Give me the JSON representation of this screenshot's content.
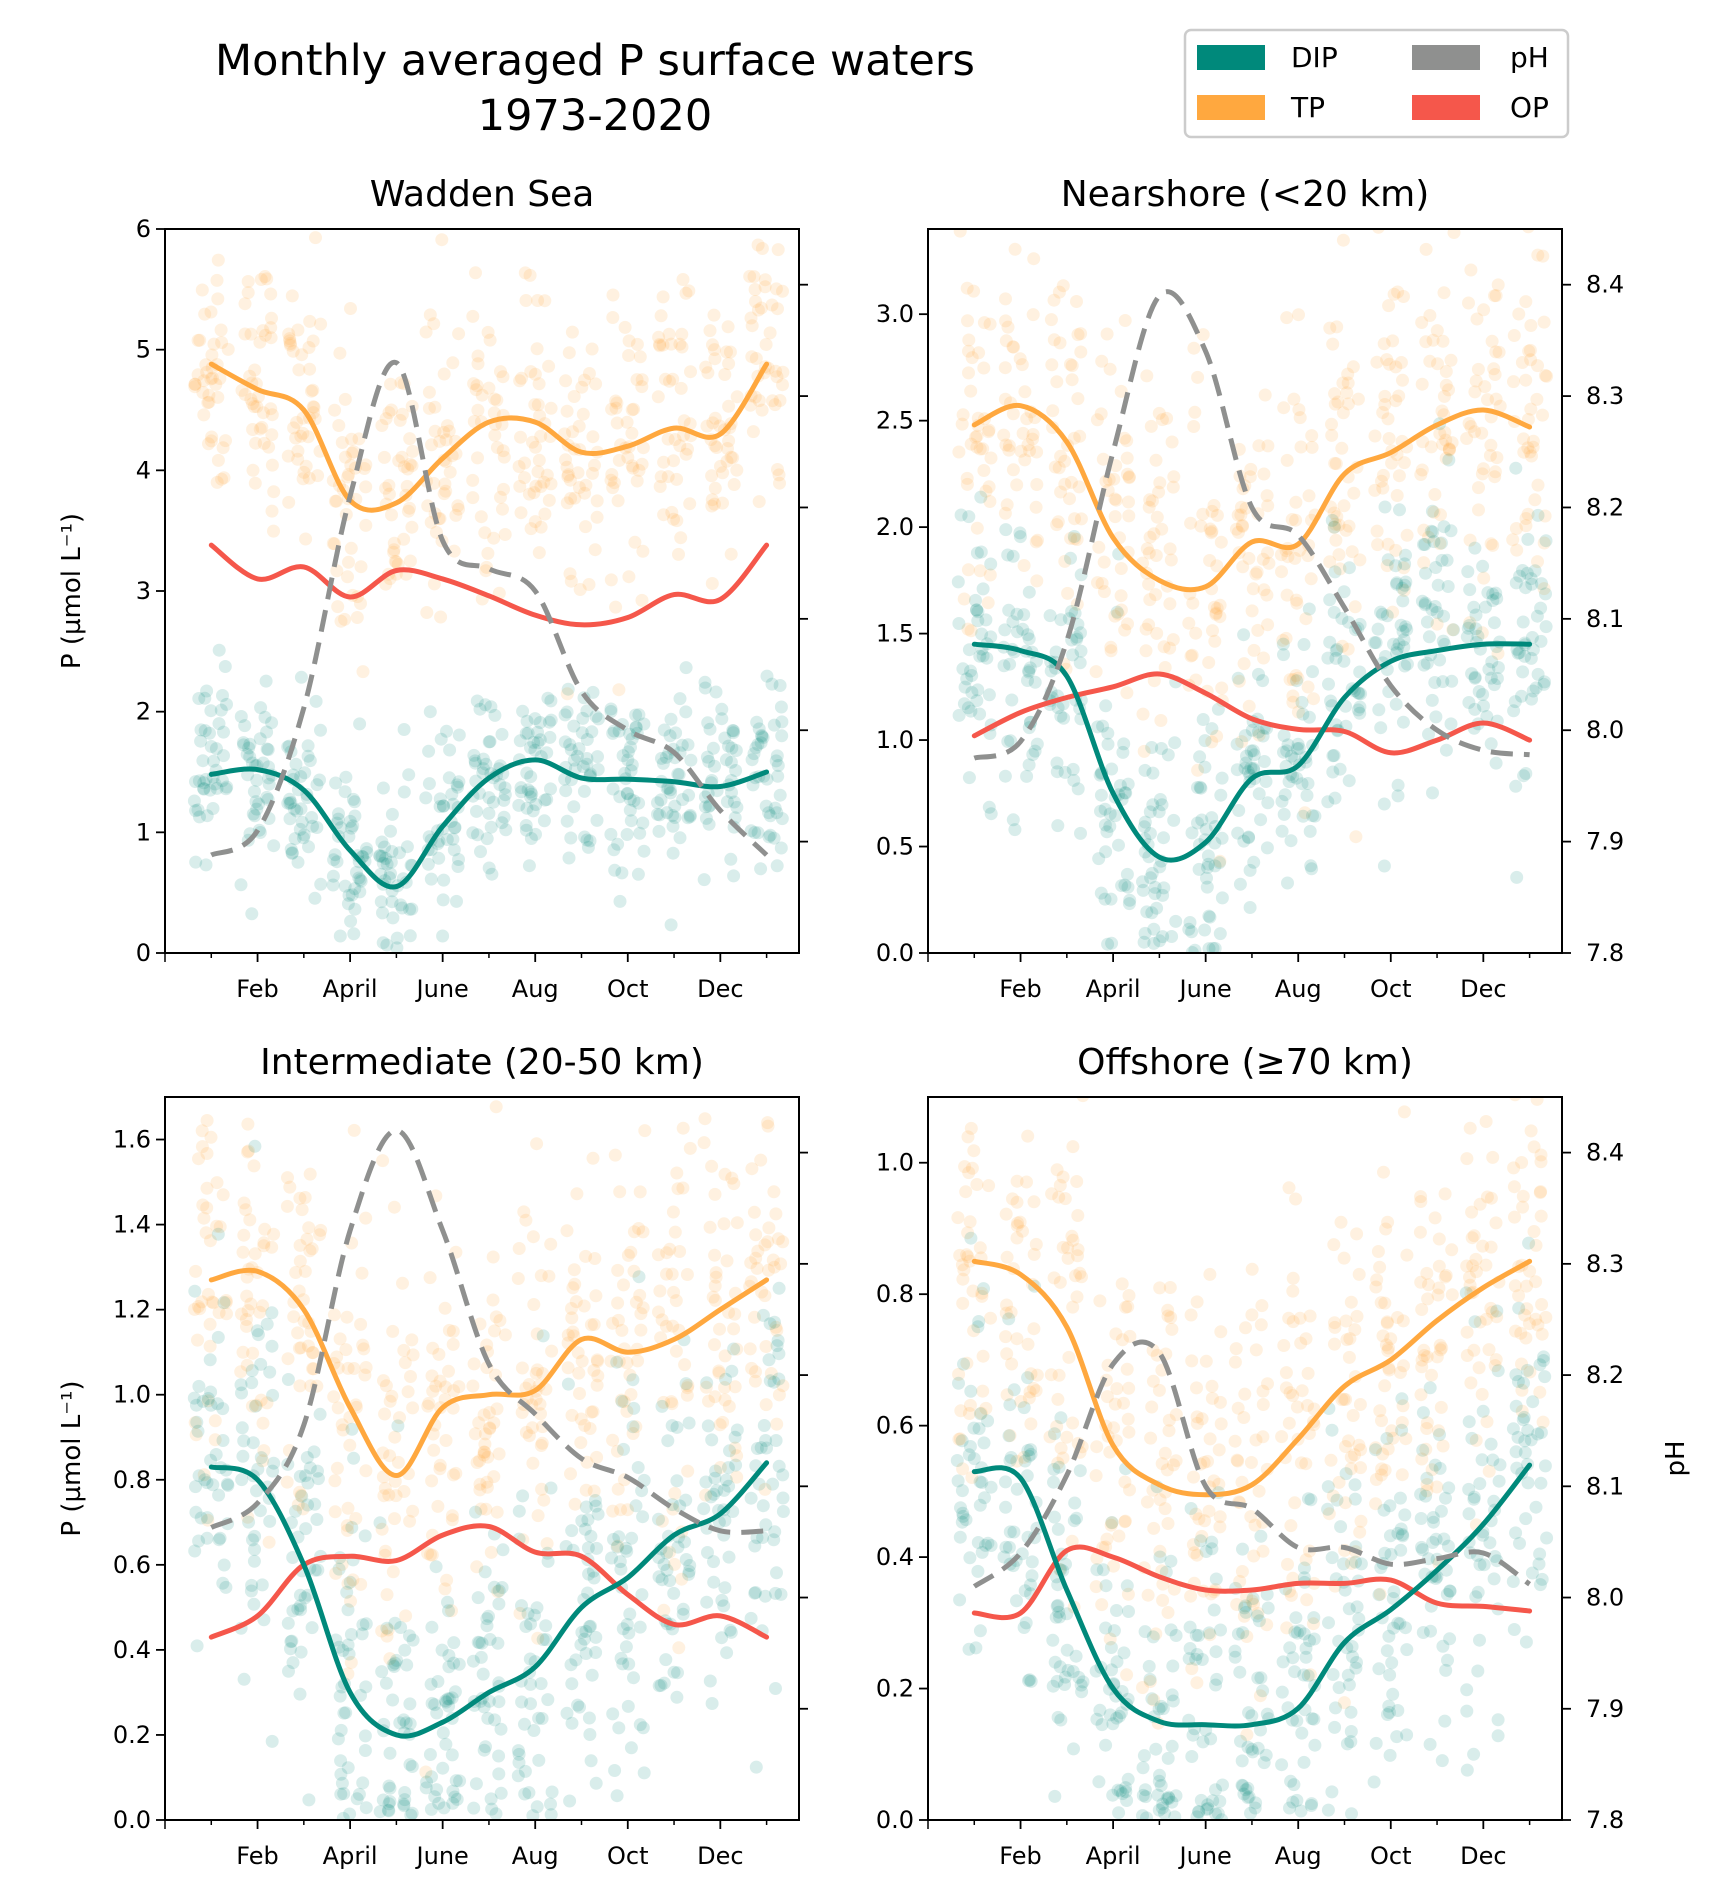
{
  "figure": {
    "title_line1": "Monthly averaged P surface waters",
    "title_line2": "1973-2020"
  },
  "legend": [
    {
      "label": "DIP",
      "color": "#00897b"
    },
    {
      "label": "pH",
      "color": "#8f908f"
    },
    {
      "label": "TP",
      "color": "#ffa83f"
    },
    {
      "label": "OP",
      "color": "#f5574b"
    }
  ],
  "chart_data": [
    {
      "type": "line",
      "title": "Wadden Sea",
      "ylabel": "P (µmol L⁻¹)",
      "y2label": "",
      "ylim": [
        0,
        6
      ],
      "yticks": [
        0,
        1,
        2,
        3,
        4,
        5,
        6
      ],
      "ytick_labels": [
        "0",
        "1",
        "2",
        "3",
        "4",
        "5",
        "6"
      ],
      "y2lim": [
        7.8,
        8.45
      ],
      "y2ticks": [
        7.9,
        8.0,
        8.1,
        8.2,
        8.3,
        8.4
      ],
      "y2tick_labels": [],
      "xlim": [
        0,
        13.7
      ],
      "x_tick_labels": [
        "Feb",
        "April",
        "June",
        "Aug",
        "Oct",
        "Dec"
      ],
      "x_tick_positions": [
        2,
        4,
        6,
        8,
        10,
        12
      ],
      "minor_x_ticks": [
        0,
        1,
        3,
        5,
        7,
        9,
        11,
        13
      ],
      "x": [
        1,
        2,
        3,
        4,
        5,
        6,
        7,
        8,
        9,
        10,
        11,
        12,
        13
      ],
      "series": [
        {
          "name": "TP",
          "axis": "left",
          "style": "solid",
          "color": "#ffa83f",
          "values": [
            4.88,
            4.67,
            4.5,
            3.75,
            3.73,
            4.1,
            4.4,
            4.4,
            4.15,
            4.2,
            4.35,
            4.3,
            4.88
          ]
        },
        {
          "name": "OP",
          "axis": "left",
          "style": "solid",
          "color": "#f5574b",
          "values": [
            3.38,
            3.1,
            3.2,
            2.95,
            3.17,
            3.1,
            2.96,
            2.8,
            2.72,
            2.78,
            2.97,
            2.93,
            3.38
          ]
        },
        {
          "name": "DIP",
          "axis": "left",
          "style": "solid",
          "color": "#00897b",
          "values": [
            1.48,
            1.52,
            1.35,
            0.85,
            0.55,
            1.05,
            1.45,
            1.6,
            1.45,
            1.44,
            1.42,
            1.38,
            1.5
          ]
        },
        {
          "name": "pH",
          "axis": "right",
          "style": "dashed",
          "color": "#8f908f",
          "values": [
            7.888,
            7.91,
            8.02,
            8.21,
            8.33,
            8.17,
            8.145,
            8.125,
            8.035,
            8.0,
            7.98,
            7.928,
            7.888
          ]
        }
      ],
      "scatter": {
        "TP": {
          "mean": [
            4.9,
            4.7,
            4.5,
            3.8,
            3.8,
            4.1,
            4.4,
            4.4,
            4.2,
            4.2,
            4.4,
            4.3,
            4.9
          ],
          "spread": 1.1
        },
        "DIP": {
          "mean": [
            1.5,
            1.5,
            1.3,
            0.8,
            0.55,
            1.0,
            1.4,
            1.6,
            1.45,
            1.45,
            1.4,
            1.4,
            1.5
          ],
          "spread": 0.75
        }
      }
    },
    {
      "type": "line",
      "title": "Nearshore (<20 km)",
      "ylabel": "",
      "y2label": "",
      "ylim": [
        0,
        3.4
      ],
      "yticks": [
        0,
        0.5,
        1.0,
        1.5,
        2.0,
        2.5,
        3.0
      ],
      "ytick_labels": [
        "0.0",
        "0.5",
        "1.0",
        "1.5",
        "2.0",
        "2.5",
        "3.0"
      ],
      "y2lim": [
        7.8,
        8.45
      ],
      "y2ticks": [
        7.8,
        7.9,
        8.0,
        8.1,
        8.2,
        8.3,
        8.4
      ],
      "y2tick_labels": [
        "7.8",
        "7.9",
        "8.0",
        "8.1",
        "8.2",
        "8.3",
        "8.4"
      ],
      "xlim": [
        0,
        13.7
      ],
      "x_tick_labels": [
        "Feb",
        "April",
        "June",
        "Aug",
        "Oct",
        "Dec"
      ],
      "x_tick_positions": [
        2,
        4,
        6,
        8,
        10,
        12
      ],
      "minor_x_ticks": [
        0,
        1,
        3,
        5,
        7,
        9,
        11,
        13
      ],
      "x": [
        1,
        2,
        3,
        4,
        5,
        6,
        7,
        8,
        9,
        10,
        11,
        12,
        13
      ],
      "series": [
        {
          "name": "TP",
          "axis": "left",
          "style": "solid",
          "color": "#ffa83f",
          "values": [
            2.48,
            2.57,
            2.4,
            1.95,
            1.75,
            1.72,
            1.93,
            1.92,
            2.25,
            2.35,
            2.48,
            2.55,
            2.47
          ]
        },
        {
          "name": "OP",
          "axis": "left",
          "style": "solid",
          "color": "#f5574b",
          "values": [
            1.02,
            1.13,
            1.2,
            1.25,
            1.31,
            1.22,
            1.1,
            1.05,
            1.04,
            0.94,
            1.0,
            1.08,
            1.0
          ]
        },
        {
          "name": "DIP",
          "axis": "left",
          "style": "solid",
          "color": "#00897b",
          "values": [
            1.45,
            1.42,
            1.3,
            0.75,
            0.45,
            0.52,
            0.82,
            0.88,
            1.2,
            1.37,
            1.42,
            1.45,
            1.45
          ]
        },
        {
          "name": "pH",
          "axis": "right",
          "style": "dashed",
          "color": "#8f908f",
          "values": [
            7.975,
            7.99,
            8.08,
            8.25,
            8.39,
            8.34,
            8.2,
            8.175,
            8.11,
            8.04,
            8.0,
            7.982,
            7.978
          ]
        }
      ],
      "scatter": {
        "TP": {
          "mean": [
            2.5,
            2.5,
            2.4,
            2.0,
            1.8,
            1.75,
            1.9,
            1.9,
            2.2,
            2.35,
            2.5,
            2.55,
            2.5
          ],
          "spread": 0.8
        },
        "DIP": {
          "mean": [
            1.5,
            1.45,
            1.3,
            0.75,
            0.45,
            0.5,
            0.8,
            0.9,
            1.2,
            1.4,
            1.45,
            1.45,
            1.45
          ],
          "spread": 0.6
        }
      }
    },
    {
      "type": "line",
      "title": "Intermediate (20-50 km)",
      "ylabel": "P (µmol L⁻¹)",
      "y2label": "",
      "ylim": [
        0,
        1.7
      ],
      "yticks": [
        0,
        0.2,
        0.4,
        0.6,
        0.8,
        1.0,
        1.2,
        1.4,
        1.6
      ],
      "ytick_labels": [
        "0.0",
        "0.2",
        "0.4",
        "0.6",
        "0.8",
        "1.0",
        "1.2",
        "1.4",
        "1.6"
      ],
      "y2lim": [
        7.8,
        8.45
      ],
      "y2ticks": [
        7.9,
        8.0,
        8.1,
        8.2,
        8.3,
        8.4
      ],
      "y2tick_labels": [],
      "xlim": [
        0,
        13.7
      ],
      "x_tick_labels": [
        "Feb",
        "April",
        "June",
        "Aug",
        "Oct",
        "Dec"
      ],
      "x_tick_positions": [
        2,
        4,
        6,
        8,
        10,
        12
      ],
      "minor_x_ticks": [
        0,
        1,
        3,
        5,
        7,
        9,
        11,
        13
      ],
      "x": [
        1,
        2,
        3,
        4,
        5,
        6,
        7,
        8,
        9,
        10,
        11,
        12,
        13
      ],
      "series": [
        {
          "name": "TP",
          "axis": "left",
          "style": "solid",
          "color": "#ffa83f",
          "values": [
            1.27,
            1.29,
            1.2,
            0.97,
            0.81,
            0.97,
            1.0,
            1.01,
            1.13,
            1.1,
            1.13,
            1.2,
            1.27
          ]
        },
        {
          "name": "OP",
          "axis": "left",
          "style": "solid",
          "color": "#f5574b",
          "values": [
            0.43,
            0.48,
            0.6,
            0.62,
            0.61,
            0.67,
            0.69,
            0.63,
            0.62,
            0.53,
            0.46,
            0.48,
            0.43
          ]
        },
        {
          "name": "DIP",
          "axis": "left",
          "style": "solid",
          "color": "#00897b",
          "values": [
            0.83,
            0.8,
            0.6,
            0.3,
            0.2,
            0.23,
            0.3,
            0.36,
            0.5,
            0.57,
            0.67,
            0.72,
            0.84
          ]
        },
        {
          "name": "pH",
          "axis": "right",
          "style": "dashed",
          "color": "#8f908f",
          "values": [
            8.063,
            8.085,
            8.155,
            8.33,
            8.42,
            8.33,
            8.21,
            8.165,
            8.125,
            8.108,
            8.08,
            8.06,
            8.06
          ]
        }
      ],
      "scatter": {
        "TP": {
          "mean": [
            1.3,
            1.3,
            1.2,
            1.0,
            0.85,
            0.95,
            1.0,
            1.0,
            1.1,
            1.1,
            1.15,
            1.2,
            1.3
          ],
          "spread": 0.45
        },
        "DIP": {
          "mean": [
            0.8,
            0.8,
            0.6,
            0.3,
            0.2,
            0.22,
            0.3,
            0.35,
            0.5,
            0.55,
            0.65,
            0.7,
            0.8
          ],
          "spread": 0.4
        }
      }
    },
    {
      "type": "line",
      "title": "Offshore (≥70 km)",
      "ylabel": "",
      "y2label": "pH",
      "ylim": [
        0,
        1.1
      ],
      "yticks": [
        0,
        0.2,
        0.4,
        0.6,
        0.8,
        1.0
      ],
      "ytick_labels": [
        "0.0",
        "0.2",
        "0.4",
        "0.6",
        "0.8",
        "1.0"
      ],
      "y2lim": [
        7.8,
        8.45
      ],
      "y2ticks": [
        7.8,
        7.9,
        8.0,
        8.1,
        8.2,
        8.3,
        8.4
      ],
      "y2tick_labels": [
        "7.8",
        "7.9",
        "8.0",
        "8.1",
        "8.2",
        "8.3",
        "8.4"
      ],
      "xlim": [
        0,
        13.7
      ],
      "x_tick_labels": [
        "Feb",
        "April",
        "June",
        "Aug",
        "Oct",
        "Dec"
      ],
      "x_tick_positions": [
        2,
        4,
        6,
        8,
        10,
        12
      ],
      "minor_x_ticks": [
        0,
        1,
        3,
        5,
        7,
        9,
        11,
        13
      ],
      "x": [
        1,
        2,
        3,
        4,
        5,
        6,
        7,
        8,
        9,
        10,
        11,
        12,
        13
      ],
      "series": [
        {
          "name": "TP",
          "axis": "left",
          "style": "solid",
          "color": "#ffa83f",
          "values": [
            0.85,
            0.83,
            0.75,
            0.57,
            0.51,
            0.495,
            0.51,
            0.58,
            0.66,
            0.7,
            0.76,
            0.81,
            0.85
          ]
        },
        {
          "name": "OP",
          "axis": "left",
          "style": "solid",
          "color": "#f5574b",
          "values": [
            0.315,
            0.315,
            0.41,
            0.4,
            0.37,
            0.35,
            0.35,
            0.36,
            0.36,
            0.365,
            0.33,
            0.325,
            0.318
          ]
        },
        {
          "name": "DIP",
          "axis": "left",
          "style": "solid",
          "color": "#00897b",
          "values": [
            0.53,
            0.52,
            0.35,
            0.2,
            0.15,
            0.145,
            0.145,
            0.17,
            0.27,
            0.32,
            0.38,
            0.45,
            0.54
          ]
        },
        {
          "name": "pH",
          "axis": "right",
          "style": "dashed",
          "color": "#8f908f",
          "values": [
            8.01,
            8.04,
            8.11,
            8.21,
            8.22,
            8.1,
            8.08,
            8.045,
            8.045,
            8.03,
            8.035,
            8.04,
            8.012
          ]
        }
      ],
      "scatter": {
        "TP": {
          "mean": [
            0.85,
            0.83,
            0.75,
            0.58,
            0.52,
            0.5,
            0.52,
            0.58,
            0.65,
            0.7,
            0.76,
            0.8,
            0.85
          ],
          "spread": 0.3
        },
        "DIP": {
          "mean": [
            0.53,
            0.5,
            0.35,
            0.2,
            0.15,
            0.15,
            0.15,
            0.18,
            0.27,
            0.32,
            0.38,
            0.45,
            0.53
          ],
          "spread": 0.25
        }
      }
    }
  ]
}
